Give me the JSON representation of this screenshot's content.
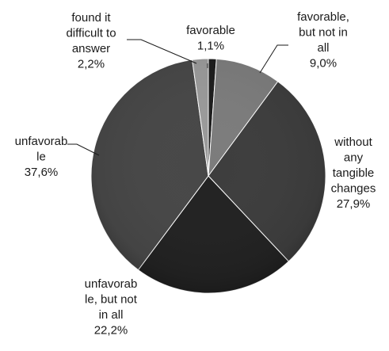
{
  "chart_data": {
    "type": "pie",
    "title": "",
    "slices": [
      {
        "label_lines": [
          "favorable"
        ],
        "label": "favorable",
        "value": 1.1,
        "value_label": "1,1%",
        "color": "#1c1c1c"
      },
      {
        "label_lines": [
          "favorable,",
          "but not in",
          "all"
        ],
        "label": "favorable, but not in all",
        "value": 9.0,
        "value_label": "9,0%",
        "color": "#7c7c7c"
      },
      {
        "label_lines": [
          "without",
          "any",
          "tangible",
          "changes"
        ],
        "label": "without any tangible changes",
        "value": 27.9,
        "value_label": "27,9%",
        "color": "#3d3d3d"
      },
      {
        "label_lines": [
          "unfavorab",
          "le, but not",
          "in all"
        ],
        "label": "unfavorable, but not in all",
        "value": 22.2,
        "value_label": "22,2%",
        "color": "#222222"
      },
      {
        "label_lines": [
          "unfavorab",
          "le"
        ],
        "label": "unfavorable",
        "value": 37.6,
        "value_label": "37,6%",
        "color": "#474747"
      },
      {
        "label_lines": [
          "found it",
          "difficult to",
          "answer"
        ],
        "label": "found it difficult to answer",
        "value": 2.2,
        "value_label": "2,2%",
        "color": "#9a9a9a"
      }
    ],
    "start_angle_deg": 0,
    "direction": "clockwise",
    "legend": "none"
  }
}
